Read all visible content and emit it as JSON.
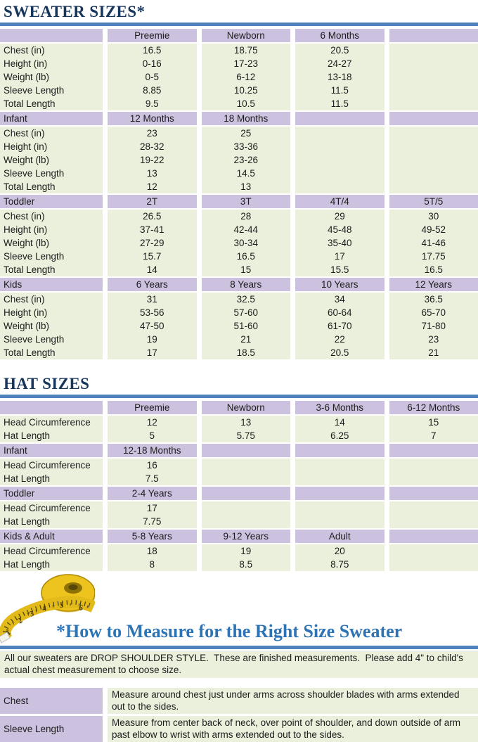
{
  "titles": {
    "sweater": "SWEATER SIZES*",
    "hat": "HAT SIZES",
    "howto": "*How to Measure for the Right Size Sweater"
  },
  "sweater_table": {
    "sections": [
      {
        "header": [
          "",
          "Preemie",
          "Newborn",
          "6 Months",
          ""
        ],
        "rows": [
          [
            "Chest (in)",
            "16.5",
            "18.75",
            "20.5",
            ""
          ],
          [
            "Height (in)",
            "0-16",
            "17-23",
            "24-27",
            ""
          ],
          [
            "Weight (lb)",
            "0-5",
            "6-12",
            "13-18",
            ""
          ],
          [
            "Sleeve Length",
            "8.85",
            "10.25",
            "11.5",
            ""
          ],
          [
            "Total Length",
            "9.5",
            "10.5",
            "11.5",
            ""
          ]
        ]
      },
      {
        "header": [
          "Infant",
          "12 Months",
          "18 Months",
          "",
          ""
        ],
        "rows": [
          [
            "Chest (in)",
            "23",
            "25",
            "",
            ""
          ],
          [
            "Height (in)",
            "28-32",
            "33-36",
            "",
            ""
          ],
          [
            "Weight (lb)",
            "19-22",
            "23-26",
            "",
            ""
          ],
          [
            "Sleeve Length",
            "13",
            "14.5",
            "",
            ""
          ],
          [
            "Total Length",
            "12",
            "13",
            "",
            ""
          ]
        ]
      },
      {
        "header": [
          "Toddler",
          "2T",
          "3T",
          "4T/4",
          "5T/5"
        ],
        "rows": [
          [
            "Chest (in)",
            "26.5",
            "28",
            "29",
            "30"
          ],
          [
            "Height (in)",
            "37-41",
            "42-44",
            "45-48",
            "49-52"
          ],
          [
            "Weight (lb)",
            "27-29",
            "30-34",
            "35-40",
            "41-46"
          ],
          [
            "Sleeve Length",
            "15.7",
            "16.5",
            "17",
            "17.75"
          ],
          [
            "Total Length",
            "14",
            "15",
            "15.5",
            "16.5"
          ]
        ]
      },
      {
        "header": [
          "Kids",
          "6 Years",
          "8 Years",
          "10 Years",
          "12 Years"
        ],
        "rows": [
          [
            "Chest (in)",
            "31",
            "32.5",
            "34",
            "36.5"
          ],
          [
            "Height (in)",
            "53-56",
            "57-60",
            "60-64",
            "65-70"
          ],
          [
            "Weight (lb)",
            "47-50",
            "51-60",
            "61-70",
            "71-80"
          ],
          [
            "Sleeve Length",
            "19",
            "21",
            "22",
            "23"
          ],
          [
            "Total Length",
            "17",
            "18.5",
            "20.5",
            "21"
          ]
        ]
      }
    ]
  },
  "hat_table": {
    "sections": [
      {
        "header": [
          "",
          "Preemie",
          "Newborn",
          "3-6 Months",
          "6-12 Months"
        ],
        "rows": [
          [
            "Head Circumference",
            "12",
            "13",
            "14",
            "15"
          ],
          [
            "Hat Length",
            "5",
            "5.75",
            "6.25",
            "7"
          ]
        ]
      },
      {
        "header": [
          "Infant",
          "12-18 Months",
          "",
          "",
          ""
        ],
        "rows": [
          [
            "Head Circumference",
            "16",
            "",
            "",
            ""
          ],
          [
            "Hat Length",
            "7.5",
            "",
            "",
            ""
          ]
        ]
      },
      {
        "header": [
          "Toddler",
          "2-4 Years",
          "",
          "",
          ""
        ],
        "rows": [
          [
            "Head Circumference",
            "17",
            "",
            "",
            ""
          ],
          [
            "Hat Length",
            "7.75",
            "",
            "",
            ""
          ]
        ]
      },
      {
        "header": [
          "Kids & Adult",
          "5-8 Years",
          "9-12 Years",
          "Adult",
          ""
        ],
        "rows": [
          [
            "Head Circumference",
            "18",
            "19",
            "20",
            ""
          ],
          [
            "Hat Length",
            "8",
            "8.5",
            "8.75",
            ""
          ]
        ]
      }
    ]
  },
  "notes": {
    "intro": "All our sweaters are DROP SHOULDER STYLE.  These are finished measurements.  Please add 4\" to child's actual chest measurement to choose size.",
    "rows": [
      {
        "label": "Chest",
        "text": "Measure around chest just under arms across shoulder blades with arms extended out to the sides."
      },
      {
        "label": "Sleeve Length",
        "text": "Measure from center back of neck, over point of shoulder, and down outside of arm past elbow to wrist with arms extended out to the sides."
      }
    ]
  },
  "icons": {
    "tape_measure": "tape-measure-illustration",
    "tape_numbers": [
      "1",
      "2",
      "3",
      "4",
      "5",
      "6"
    ]
  },
  "colors": {
    "title_navy": "#17365D",
    "howto_blue": "#2E74B5",
    "rule_blue": "#4F81BD",
    "header_purple": "#CCC1DF",
    "cell_green": "#EAF0DC",
    "tape_yellow": "#EDC41E"
  }
}
